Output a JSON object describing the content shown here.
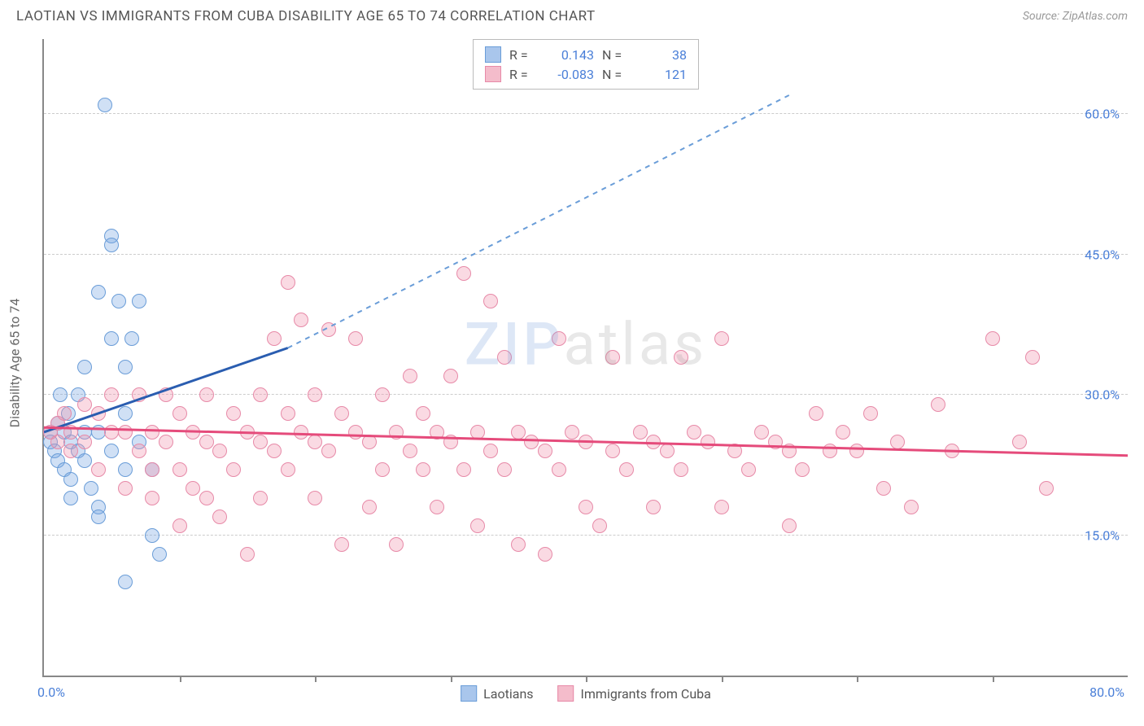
{
  "title": "LAOTIAN VS IMMIGRANTS FROM CUBA DISABILITY AGE 65 TO 74 CORRELATION CHART",
  "source": "Source: ZipAtlas.com",
  "y_axis_title": "Disability Age 65 to 74",
  "watermark": {
    "part1": "ZIP",
    "part2": "atlas"
  },
  "chart": {
    "type": "scatter",
    "x_domain": [
      0,
      80
    ],
    "y_domain": [
      0,
      68
    ],
    "x_label_min": "0.0%",
    "x_label_max": "80.0%",
    "x_ticks": [
      10,
      20,
      30,
      40,
      50,
      60,
      70
    ],
    "y_gridlines": [
      {
        "value": 15,
        "label": "15.0%"
      },
      {
        "value": 30,
        "label": "30.0%"
      },
      {
        "value": 45,
        "label": "45.0%"
      },
      {
        "value": 60,
        "label": "60.0%"
      }
    ],
    "background_color": "#ffffff",
    "grid_color": "#cccccc",
    "axis_color": "#888888",
    "tick_label_color": "#4a7fd8",
    "point_radius": 9,
    "series": [
      {
        "name": "Laotians",
        "key": "laotians",
        "fill": "rgba(120,165,225,0.35)",
        "stroke": "#6a9dd8",
        "swatch_fill": "#a9c6ec",
        "swatch_stroke": "#6a9dd8",
        "trend_solid": {
          "x1": 0,
          "y1": 26,
          "x2": 18,
          "y2": 35,
          "color": "#2a5db0",
          "width": 3
        },
        "trend_dash": {
          "x1": 18,
          "y1": 35,
          "x2": 55,
          "y2": 62,
          "color": "#6a9dd8",
          "width": 2,
          "dash": "6,6"
        },
        "stats": {
          "R_label": "R =",
          "R": "0.143",
          "N_label": "N =",
          "N": "38"
        },
        "points": [
          [
            0.5,
            26
          ],
          [
            0.5,
            25
          ],
          [
            0.8,
            24
          ],
          [
            1,
            23
          ],
          [
            1,
            27
          ],
          [
            1.2,
            30
          ],
          [
            1.5,
            26
          ],
          [
            1.5,
            22
          ],
          [
            1.8,
            28
          ],
          [
            2,
            25
          ],
          [
            2,
            21
          ],
          [
            2,
            19
          ],
          [
            2.5,
            24
          ],
          [
            2.5,
            30
          ],
          [
            3,
            26
          ],
          [
            3,
            33
          ],
          [
            3,
            23
          ],
          [
            3.5,
            20
          ],
          [
            4,
            18
          ],
          [
            4,
            26
          ],
          [
            4,
            41
          ],
          [
            4.5,
            61
          ],
          [
            5,
            24
          ],
          [
            5,
            36
          ],
          [
            5,
            47
          ],
          [
            5,
            46
          ],
          [
            5.5,
            40
          ],
          [
            6,
            33
          ],
          [
            6,
            28
          ],
          [
            6,
            22
          ],
          [
            6,
            10
          ],
          [
            6.5,
            36
          ],
          [
            7,
            40
          ],
          [
            7,
            25
          ],
          [
            8,
            22
          ],
          [
            8,
            15
          ],
          [
            8.5,
            13
          ],
          [
            4,
            17
          ]
        ]
      },
      {
        "name": "Immigrants from Cuba",
        "key": "cuba",
        "fill": "rgba(240,150,175,0.35)",
        "stroke": "#e78aa8",
        "swatch_fill": "#f4bccb",
        "swatch_stroke": "#e78aa8",
        "trend_solid": {
          "x1": 0,
          "y1": 26.5,
          "x2": 80,
          "y2": 23.5,
          "color": "#e54b7b",
          "width": 3
        },
        "stats": {
          "R_label": "R =",
          "R": "-0.083",
          "N_label": "N =",
          "N": "121"
        },
        "points": [
          [
            0.5,
            26
          ],
          [
            1,
            25
          ],
          [
            1,
            27
          ],
          [
            1.5,
            28
          ],
          [
            2,
            26
          ],
          [
            2,
            24
          ],
          [
            3,
            29
          ],
          [
            3,
            25
          ],
          [
            4,
            28
          ],
          [
            4,
            22
          ],
          [
            5,
            26
          ],
          [
            5,
            30
          ],
          [
            6,
            26
          ],
          [
            6,
            20
          ],
          [
            7,
            24
          ],
          [
            7,
            30
          ],
          [
            8,
            22
          ],
          [
            8,
            26
          ],
          [
            8,
            19
          ],
          [
            9,
            25
          ],
          [
            9,
            30
          ],
          [
            10,
            22
          ],
          [
            10,
            28
          ],
          [
            10,
            16
          ],
          [
            11,
            26
          ],
          [
            11,
            20
          ],
          [
            12,
            19
          ],
          [
            12,
            25
          ],
          [
            12,
            30
          ],
          [
            13,
            24
          ],
          [
            13,
            17
          ],
          [
            14,
            22
          ],
          [
            14,
            28
          ],
          [
            15,
            26
          ],
          [
            15,
            13
          ],
          [
            16,
            25
          ],
          [
            16,
            30
          ],
          [
            16,
            19
          ],
          [
            17,
            24
          ],
          [
            17,
            36
          ],
          [
            18,
            22
          ],
          [
            18,
            28
          ],
          [
            18,
            42
          ],
          [
            19,
            26
          ],
          [
            19,
            38
          ],
          [
            20,
            25
          ],
          [
            20,
            19
          ],
          [
            20,
            30
          ],
          [
            21,
            24
          ],
          [
            21,
            37
          ],
          [
            22,
            28
          ],
          [
            22,
            14
          ],
          [
            23,
            26
          ],
          [
            23,
            36
          ],
          [
            24,
            25
          ],
          [
            24,
            18
          ],
          [
            25,
            22
          ],
          [
            25,
            30
          ],
          [
            26,
            26
          ],
          [
            26,
            14
          ],
          [
            27,
            24
          ],
          [
            27,
            32
          ],
          [
            28,
            22
          ],
          [
            28,
            28
          ],
          [
            29,
            26
          ],
          [
            29,
            18
          ],
          [
            30,
            25
          ],
          [
            30,
            32
          ],
          [
            31,
            43
          ],
          [
            31,
            22
          ],
          [
            32,
            26
          ],
          [
            32,
            16
          ],
          [
            33,
            24
          ],
          [
            33,
            40
          ],
          [
            34,
            22
          ],
          [
            34,
            34
          ],
          [
            35,
            26
          ],
          [
            35,
            14
          ],
          [
            36,
            25
          ],
          [
            37,
            13
          ],
          [
            37,
            24
          ],
          [
            38,
            22
          ],
          [
            38,
            36
          ],
          [
            39,
            26
          ],
          [
            40,
            18
          ],
          [
            40,
            25
          ],
          [
            41,
            16
          ],
          [
            42,
            24
          ],
          [
            42,
            34
          ],
          [
            43,
            22
          ],
          [
            44,
            26
          ],
          [
            45,
            25
          ],
          [
            45,
            18
          ],
          [
            46,
            24
          ],
          [
            47,
            22
          ],
          [
            47,
            34
          ],
          [
            48,
            26
          ],
          [
            49,
            25
          ],
          [
            50,
            36
          ],
          [
            50,
            18
          ],
          [
            51,
            24
          ],
          [
            52,
            22
          ],
          [
            53,
            26
          ],
          [
            54,
            25
          ],
          [
            55,
            24
          ],
          [
            55,
            16
          ],
          [
            56,
            22
          ],
          [
            57,
            28
          ],
          [
            58,
            24
          ],
          [
            59,
            26
          ],
          [
            60,
            24
          ],
          [
            61,
            28
          ],
          [
            62,
            20
          ],
          [
            63,
            25
          ],
          [
            64,
            18
          ],
          [
            66,
            29
          ],
          [
            67,
            24
          ],
          [
            70,
            36
          ],
          [
            72,
            25
          ],
          [
            73,
            34
          ],
          [
            74,
            20
          ]
        ]
      }
    ]
  },
  "legend_bottom": [
    {
      "label": "Laotians",
      "series": "laotians"
    },
    {
      "label": "Immigrants from Cuba",
      "series": "cuba"
    }
  ]
}
